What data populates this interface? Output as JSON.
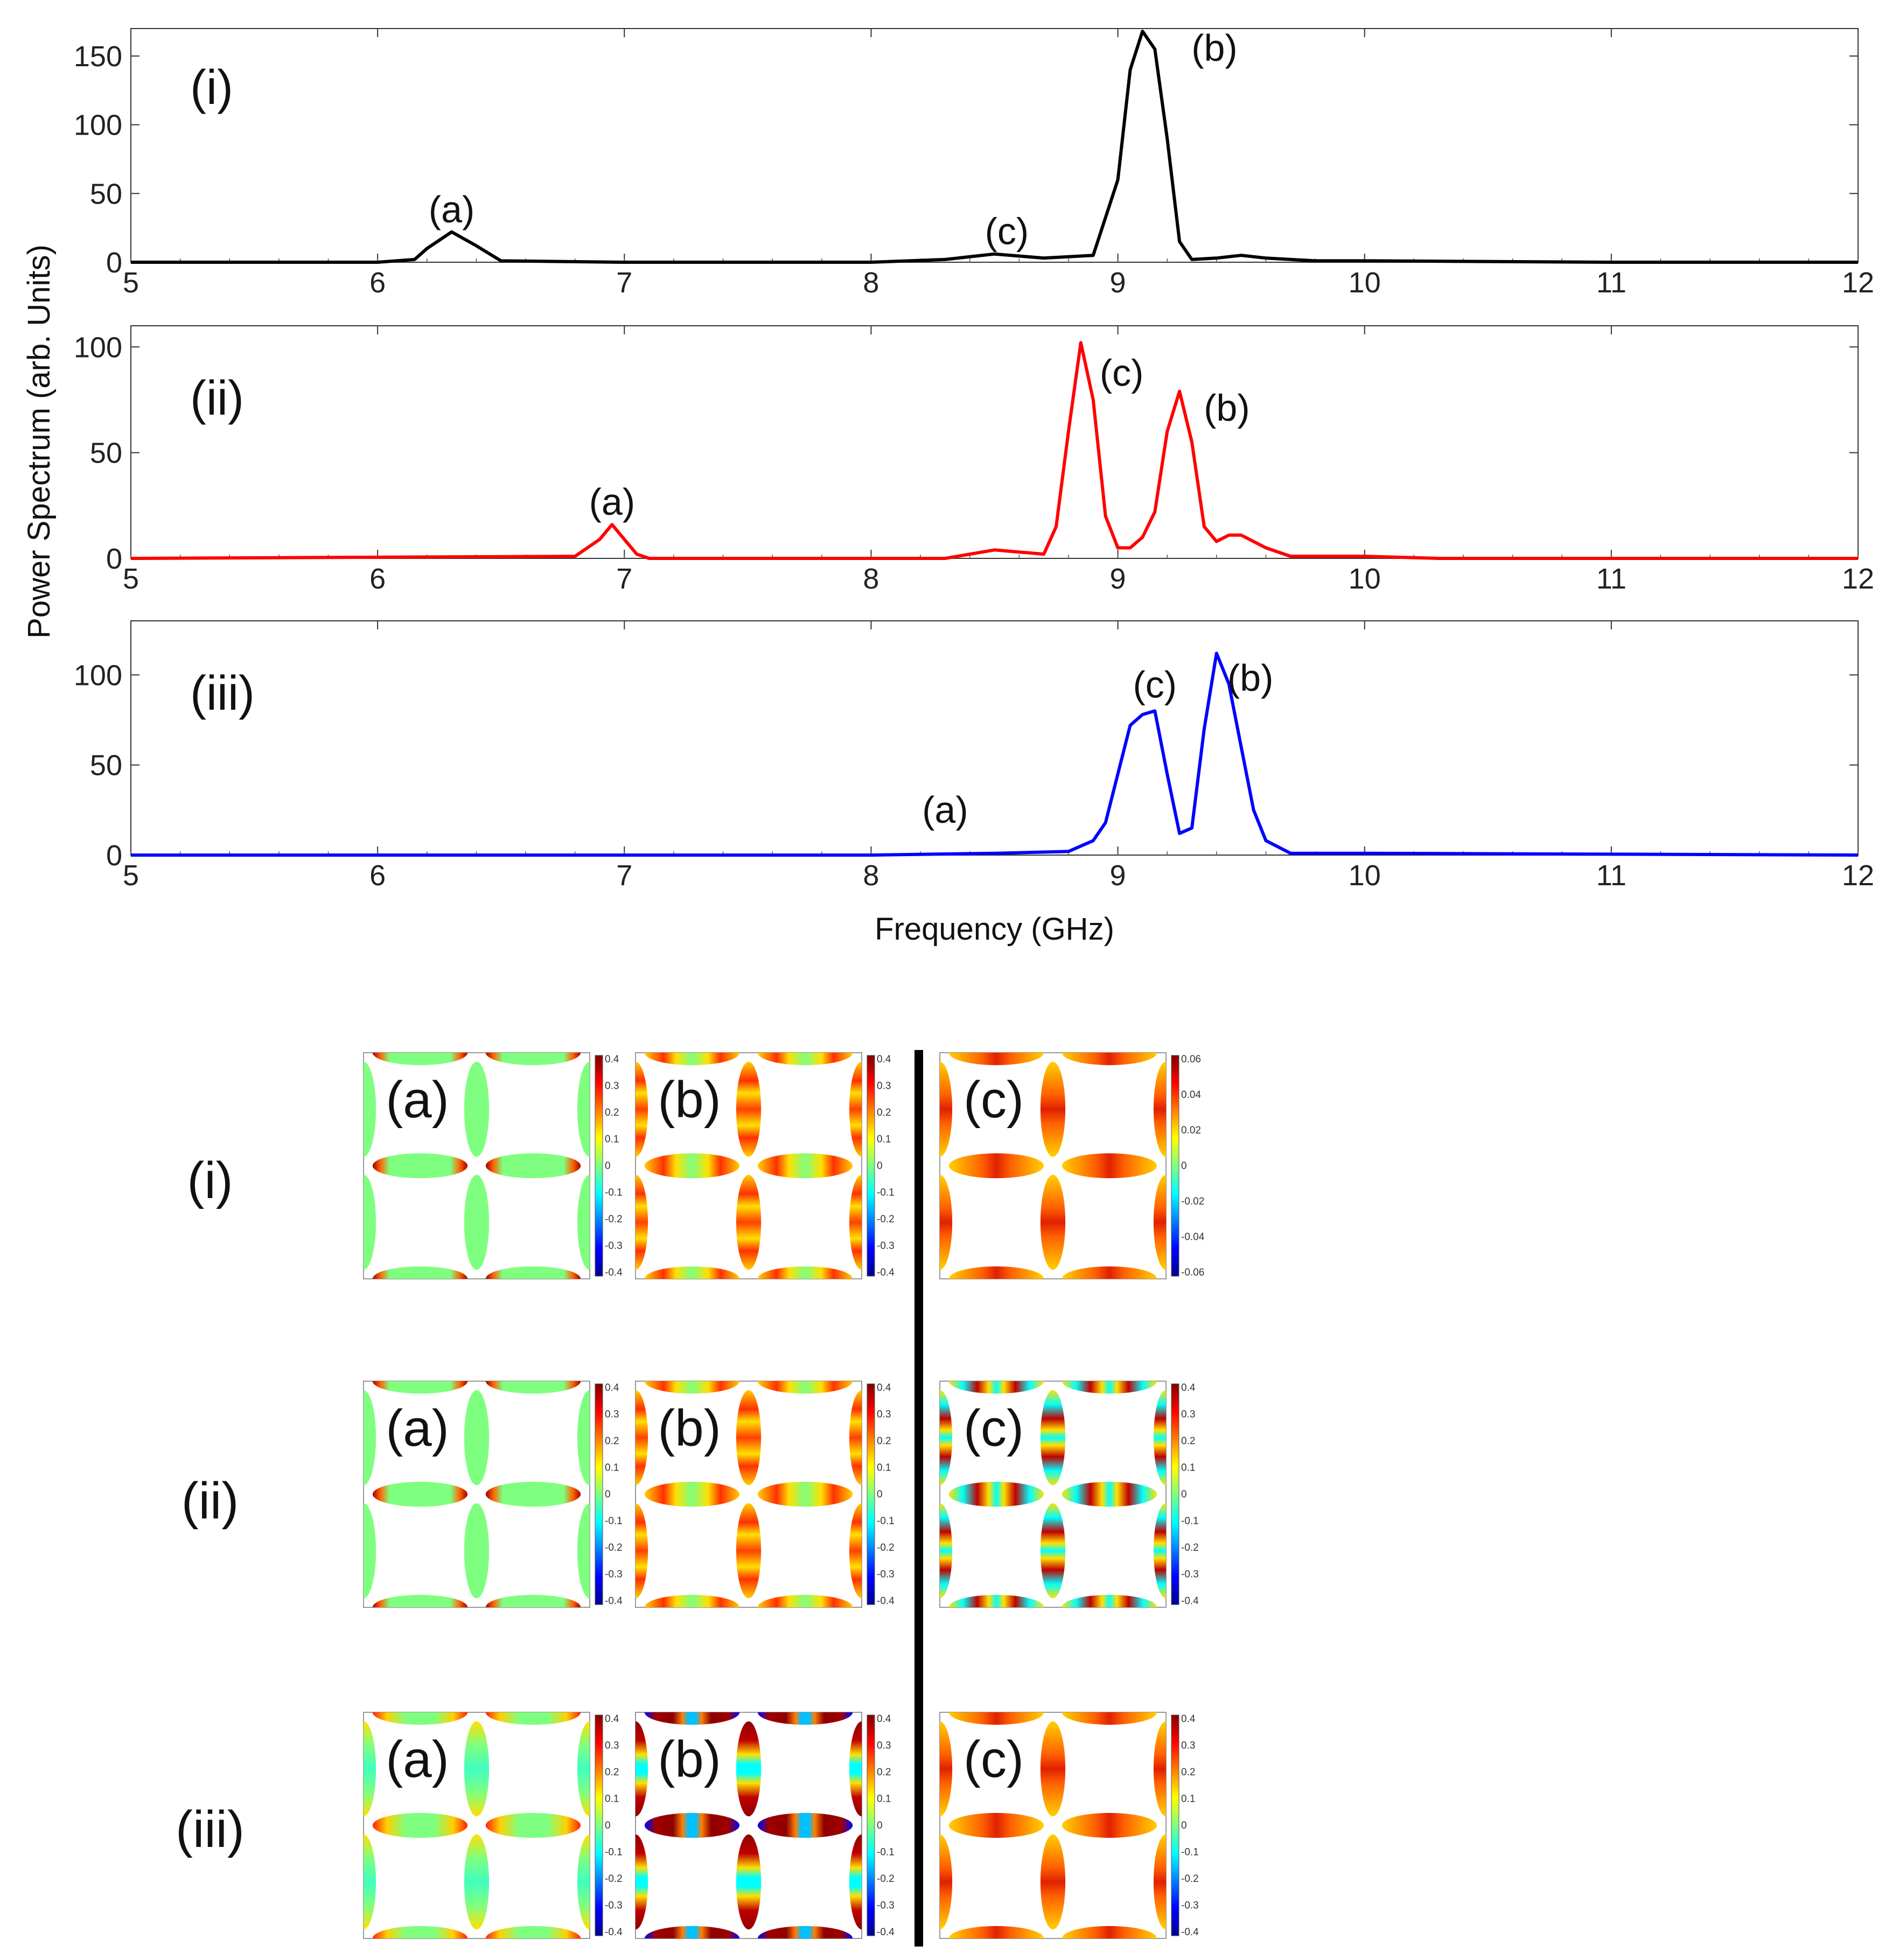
{
  "chart_data": {
    "type": "line",
    "ylabel": "Power Spectrum (arb. Units)",
    "xlabel": "Frequency (GHz)",
    "xlim": [
      5,
      12
    ],
    "xticks": [
      "5",
      "6",
      "7",
      "8",
      "9",
      "10",
      "11",
      "12"
    ],
    "panels": [
      {
        "name": "(i)",
        "color": "#000000",
        "ylim": [
          0,
          170
        ],
        "yticks": [
          "0",
          "50",
          "100",
          "150"
        ],
        "x": [
          5.0,
          6.0,
          6.15,
          6.2,
          6.3,
          6.4,
          6.5,
          7.0,
          8.0,
          8.3,
          8.5,
          8.7,
          8.9,
          9.0,
          9.05,
          9.1,
          9.15,
          9.2,
          9.25,
          9.3,
          9.4,
          9.5,
          9.6,
          9.8,
          10.0,
          11.0,
          12.0
        ],
        "values": [
          0,
          0,
          2,
          10,
          22,
          12,
          1,
          0,
          0,
          2,
          6,
          3,
          5,
          60,
          140,
          168,
          155,
          90,
          15,
          2,
          3,
          5,
          3,
          1,
          1,
          0,
          0
        ],
        "annotations": [
          {
            "text": "(a)",
            "x": 6.3,
            "y": 22
          },
          {
            "text": "(c)",
            "x": 8.55,
            "y": 6
          },
          {
            "text": "(b)",
            "x": 9.2,
            "y": 168
          }
        ]
      },
      {
        "name": "(ii)",
        "color": "#ff0000",
        "ylim": [
          0,
          110
        ],
        "yticks": [
          "0",
          "50",
          "100"
        ],
        "x": [
          5.0,
          6.8,
          6.9,
          6.95,
          7.0,
          7.05,
          7.1,
          7.5,
          8.0,
          8.3,
          8.5,
          8.6,
          8.7,
          8.75,
          8.8,
          8.85,
          8.9,
          8.95,
          9.0,
          9.05,
          9.1,
          9.15,
          9.2,
          9.25,
          9.3,
          9.35,
          9.4,
          9.45,
          9.5,
          9.6,
          9.7,
          10.0,
          10.3,
          12.0
        ],
        "values": [
          0,
          1,
          9,
          16,
          9,
          2,
          0,
          0,
          0,
          0,
          4,
          3,
          2,
          15,
          60,
          102,
          75,
          20,
          5,
          5,
          10,
          22,
          60,
          79,
          55,
          15,
          8,
          11,
          11,
          5,
          1,
          1,
          0,
          0
        ],
        "annotations": [
          {
            "text": "(a)",
            "x": 6.95,
            "y": 16
          },
          {
            "text": "(c)",
            "x": 8.85,
            "y": 102
          },
          {
            "text": "(b)",
            "x": 9.25,
            "y": 79
          }
        ]
      },
      {
        "name": "(iii)",
        "color": "#0000ff",
        "ylim": [
          0,
          130
        ],
        "yticks": [
          "0",
          "50",
          "100"
        ],
        "x": [
          5.0,
          8.0,
          8.5,
          8.8,
          8.9,
          8.95,
          9.0,
          9.05,
          9.1,
          9.15,
          9.2,
          9.25,
          9.3,
          9.35,
          9.4,
          9.45,
          9.5,
          9.55,
          9.6,
          9.7,
          10.0,
          12.0
        ],
        "values": [
          0,
          0,
          1,
          2,
          8,
          18,
          45,
          72,
          78,
          80,
          45,
          12,
          15,
          70,
          112,
          95,
          60,
          25,
          8,
          1,
          1,
          0
        ],
        "annotations": [
          {
            "text": "(a)",
            "x": 8.3,
            "y": 0
          },
          {
            "text": "(c)",
            "x": 9.15,
            "y": 80
          },
          {
            "text": "(b)",
            "x": 9.4,
            "y": 112
          }
        ]
      }
    ],
    "heatmaps": {
      "rows": [
        "(i)",
        "(ii)",
        "(iii)"
      ],
      "tiles": [
        {
          "row": 0,
          "label": "(a)",
          "ticks": [
            "0.4",
            "0.3",
            "0.2",
            "0.1",
            "0",
            "-0.1",
            "-0.2",
            "-0.3",
            "-0.4"
          ],
          "pattern": "a"
        },
        {
          "row": 0,
          "label": "(b)",
          "ticks": [
            "0.4",
            "0.3",
            "0.2",
            "0.1",
            "0",
            "-0.1",
            "-0.2",
            "-0.3",
            "-0.4"
          ],
          "pattern": "b"
        },
        {
          "row": 0,
          "label": "(c)",
          "ticks": [
            "0.06",
            "0.04",
            "0.02",
            "0",
            "-0.02",
            "-0.04",
            "-0.06"
          ],
          "pattern": "c"
        },
        {
          "row": 1,
          "label": "(a)",
          "ticks": [
            "0.4",
            "0.3",
            "0.2",
            "0.1",
            "0",
            "-0.1",
            "-0.2",
            "-0.3",
            "-0.4"
          ],
          "pattern": "a"
        },
        {
          "row": 1,
          "label": "(b)",
          "ticks": [
            "0.4",
            "0.3",
            "0.2",
            "0.1",
            "0",
            "-0.1",
            "-0.2",
            "-0.3",
            "-0.4"
          ],
          "pattern": "b"
        },
        {
          "row": 1,
          "label": "(c)",
          "ticks": [
            "0.4",
            "0.3",
            "0.2",
            "0.1",
            "0",
            "-0.1",
            "-0.2",
            "-0.3",
            "-0.4"
          ],
          "pattern": "c2"
        },
        {
          "row": 2,
          "label": "(a)",
          "ticks": [
            "0.4",
            "0.3",
            "0.2",
            "0.1",
            "0",
            "-0.1",
            "-0.2",
            "-0.3",
            "-0.4"
          ],
          "pattern": "a3"
        },
        {
          "row": 2,
          "label": "(b)",
          "ticks": [
            "0.4",
            "0.3",
            "0.2",
            "0.1",
            "0",
            "-0.1",
            "-0.2",
            "-0.3",
            "-0.4"
          ],
          "pattern": "b3"
        },
        {
          "row": 2,
          "label": "(c)",
          "ticks": [
            "0.4",
            "0.3",
            "0.2",
            "0.1",
            "0",
            "-0.1",
            "-0.2",
            "-0.3",
            "-0.4"
          ],
          "pattern": "c"
        }
      ]
    }
  }
}
